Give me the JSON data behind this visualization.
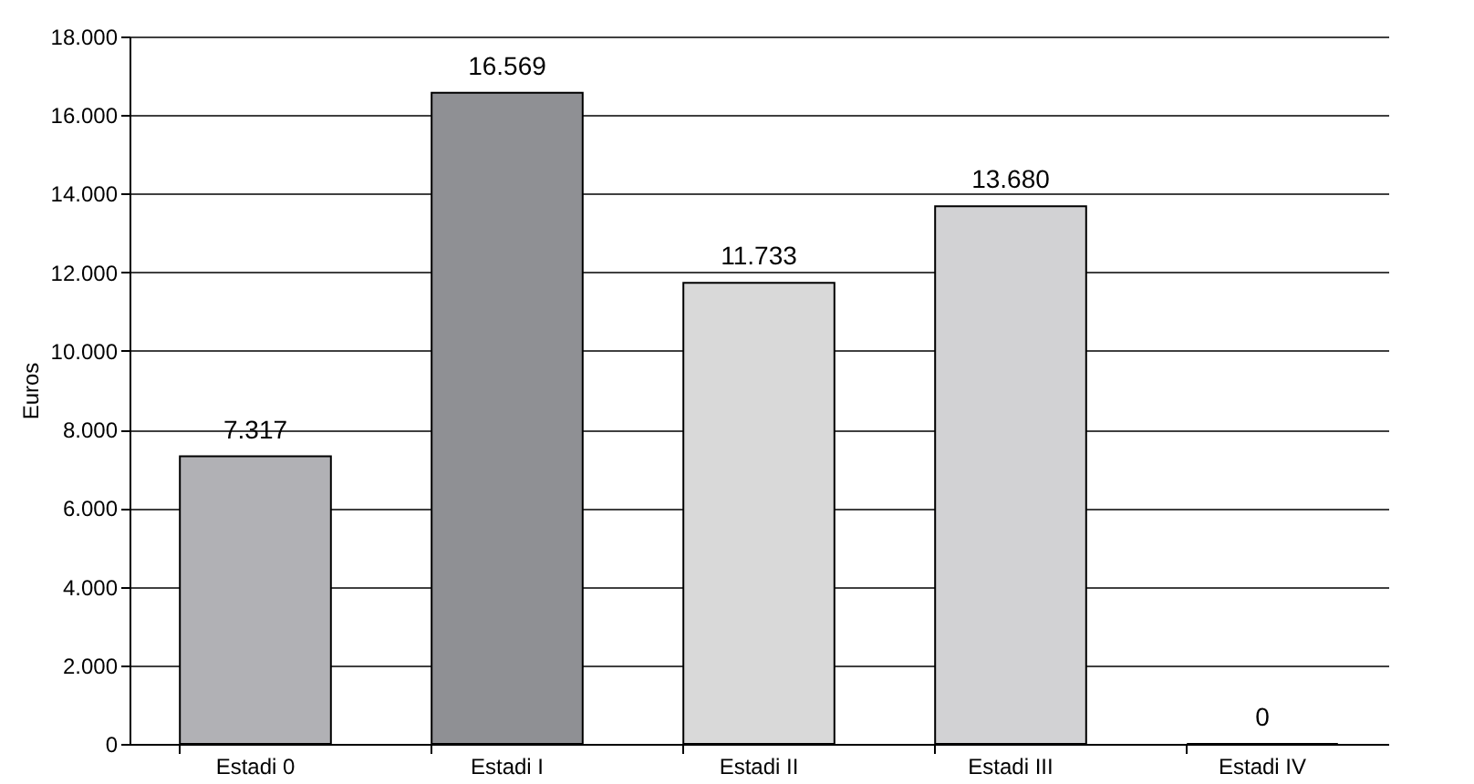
{
  "chart_data": {
    "type": "bar",
    "ylabel": "Euros",
    "categories": [
      "Estadi 0",
      "Estadi I",
      "Estadi II",
      "Estadi III",
      "Estadi IV"
    ],
    "values": [
      7317,
      16569,
      11733,
      13680,
      0
    ],
    "colors": [
      "#b1b1b5",
      "#8f9094",
      "#d9d9d9",
      "#d2d2d4",
      "#a0a0a4"
    ],
    "value_labels": [
      "7.317",
      "16.569",
      "11.733",
      "13.680",
      "0"
    ],
    "ylim": [
      0,
      18000
    ],
    "yticks": [
      {
        "value": 0,
        "label": "0"
      },
      {
        "value": 2000,
        "label": "2.000"
      },
      {
        "value": 4000,
        "label": "4.000"
      },
      {
        "value": 6000,
        "label": "6.000"
      },
      {
        "value": 8000,
        "label": "8.000"
      },
      {
        "value": 10000,
        "label": "10.000"
      },
      {
        "value": 12000,
        "label": "12.000"
      },
      {
        "value": 14000,
        "label": "14.000"
      },
      {
        "value": 16000,
        "label": "16.000"
      },
      {
        "value": 18000,
        "label": "18.000"
      }
    ],
    "grid": true
  }
}
